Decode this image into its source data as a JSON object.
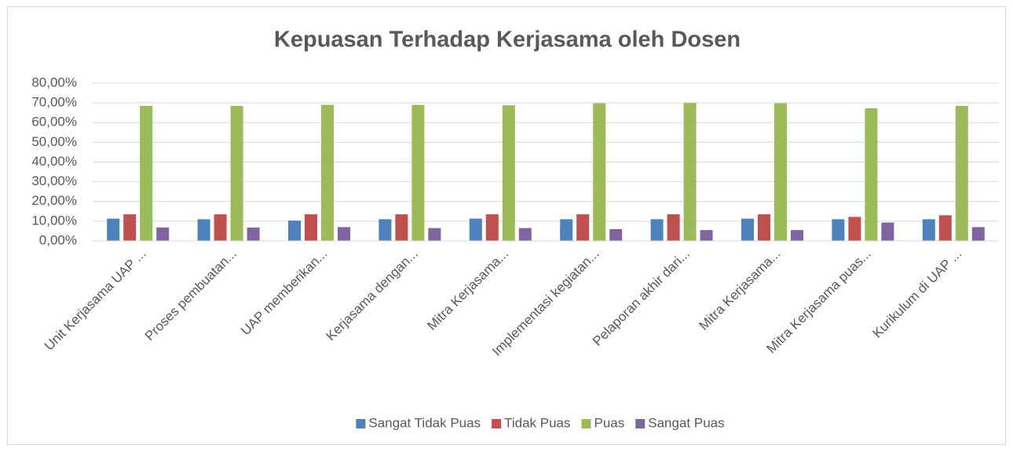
{
  "chart_data": {
    "type": "bar",
    "title": "Kepuasan Terhadap Kerjasama oleh Dosen",
    "categories": [
      "Unit Kerjasama UAP ...",
      "Proses pembuatan...",
      "UAP memberikan...",
      "Kerjasama dengan...",
      "Mitra Kerjasama...",
      "Implementasi kegiatan...",
      "Pelaporan akhir dari...",
      "Mitra Kerjasama...",
      "Mitra Kerjasama puas...",
      "Kurikulum di UAP ..."
    ],
    "series": [
      {
        "name": "Sangat Tidak Puas",
        "color": "#4f81bd",
        "values": [
          11.3,
          11,
          10.3,
          11,
          11.3,
          11,
          11,
          11.3,
          11,
          11
        ]
      },
      {
        "name": "Tidak Puas",
        "color": "#c0504d",
        "values": [
          13.5,
          13.5,
          13.5,
          13.5,
          13.5,
          13.5,
          13.5,
          13.5,
          12.2,
          13
        ]
      },
      {
        "name": "Puas",
        "color": "#9bbb59",
        "values": [
          68.5,
          68.5,
          69,
          69,
          68.8,
          69.8,
          70,
          69.8,
          67.3,
          68.5
        ]
      },
      {
        "name": "Sangat Puas",
        "color": "#8064a2",
        "values": [
          6.8,
          6.8,
          7,
          6.5,
          6.5,
          6,
          5.5,
          5.5,
          9.3,
          7
        ]
      }
    ],
    "ylim": [
      0,
      80
    ],
    "yticks": [
      {
        "value": 0,
        "label": "0,00%"
      },
      {
        "value": 10,
        "label": "10,00%"
      },
      {
        "value": 20,
        "label": "20,00%"
      },
      {
        "value": 30,
        "label": "30,00%"
      },
      {
        "value": 40,
        "label": "40,00%"
      },
      {
        "value": 50,
        "label": "50,00%"
      },
      {
        "value": 60,
        "label": "60,00%"
      },
      {
        "value": 70,
        "label": "70,00%"
      },
      {
        "value": 80,
        "label": "80,00%"
      }
    ],
    "grid": true,
    "legend": "bottom"
  }
}
